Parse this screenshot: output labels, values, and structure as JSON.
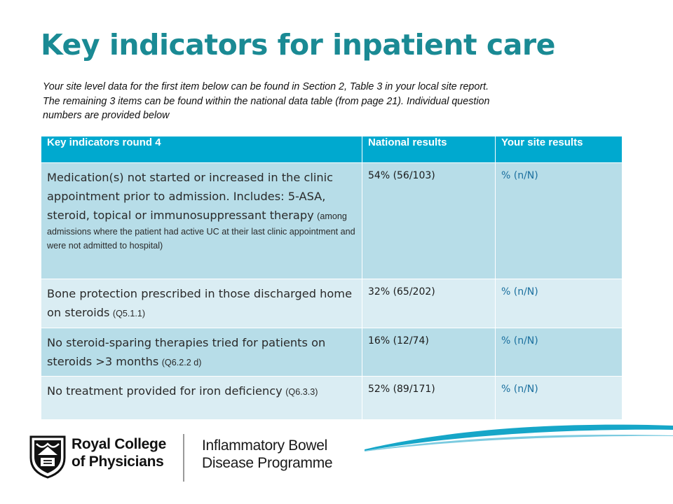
{
  "slide": {
    "title": "Key indicators for inpatient care",
    "subtitle_lines": [
      "Your site level data for the first item below can be found in Section 2, Table 3 in your local site report.",
      "The remaining 3 items can be found within the national data table (from page 21). Individual question",
      "numbers are provided below"
    ]
  },
  "table": {
    "headers": [
      "Key indicators round 4",
      "National results",
      "Your site results"
    ],
    "rows": [
      {
        "indicator": "Medication(s) not started or increased in the clinic appointment prior to admission. Includes: 5-ASA, steroid, topical or immunosuppressant therapy",
        "note": "(among admissions where the patient had active UC at their last clinic appointment and were not admitted to hospital)",
        "national": "54% (56/103)",
        "site": "% (n/N)"
      },
      {
        "indicator": "Bone protection prescribed in those discharged home on steroids",
        "note": "(Q5.1.1)",
        "national": "32% (65/202)",
        "site": "% (n/N)"
      },
      {
        "indicator": "No steroid-sparing therapies tried for patients on steroids >3 months",
        "note": "(Q6.2.2 d)",
        "national": "16% (12/74)",
        "site": "% (n/N)"
      },
      {
        "indicator": "No treatment provided for iron deficiency",
        "note": "(Q6.3.3)",
        "national": "52% (89/171)",
        "site": "% (n/N)"
      }
    ]
  },
  "footer": {
    "rcp_line1": "Royal College",
    "rcp_line2": "of Physicians",
    "programme_line1": "Inflammatory Bowel",
    "programme_line2": "Disease Programme",
    "emblem_icon": "rcp-crest-icon",
    "decoration_icon": "swoosh-decoration-icon"
  },
  "colors": {
    "title": "#1a8a94",
    "header_bg": "#00a9cf",
    "row_dark": "#b7dde8",
    "row_light": "#daedf3",
    "site_result": "#1a6f9e",
    "swoosh": "#16a6c8"
  }
}
